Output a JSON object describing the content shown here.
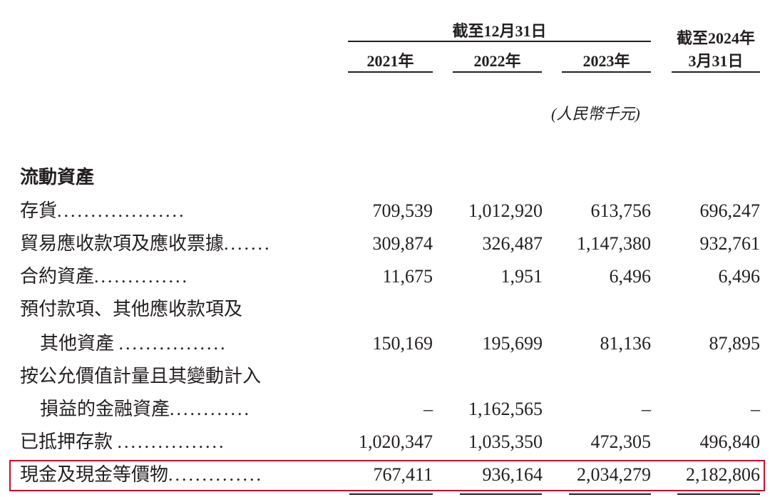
{
  "header": {
    "group_label": "截至12月31日",
    "col_last_line1": "截至2024年",
    "col_last_line2": "3月31日",
    "years": [
      "2021年",
      "2022年",
      "2023年"
    ],
    "unit": "(人民幣千元)"
  },
  "section_title": "流動資產",
  "rows": [
    {
      "label": "存貨",
      "dots": "...................",
      "values": [
        "709,539",
        "1,012,920",
        "613,756",
        "696,247"
      ]
    },
    {
      "label": "貿易應收款項及應收票據",
      "dots": ".......",
      "values": [
        "309,874",
        "326,487",
        "1,147,380",
        "932,761"
      ]
    },
    {
      "label": "合約資產",
      "dots": "..............",
      "values": [
        "11,675",
        "1,951",
        "6,496",
        "6,496"
      ]
    },
    {
      "label": "預付款項、其他應收款項及",
      "label2": "其他資產",
      "dots": "................",
      "values": [
        "150,169",
        "195,699",
        "81,136",
        "87,895"
      ]
    },
    {
      "label": "按公允價值計量且其變動計入",
      "label2": "損益的金融資產",
      "dots": "............",
      "values": [
        "–",
        "1,162,565",
        "–",
        "–"
      ]
    },
    {
      "label": "已抵押存款",
      "dots": "................",
      "values": [
        "1,020,347",
        "1,035,350",
        "472,305",
        "496,840"
      ]
    },
    {
      "label": "現金及現金等價物",
      "dots": "..............",
      "values": [
        "767,411",
        "936,164",
        "2,034,279",
        "2,182,806"
      ],
      "highlighted": true
    }
  ],
  "colors": {
    "highlight_border": "#c8102e",
    "text": "#231f20"
  }
}
